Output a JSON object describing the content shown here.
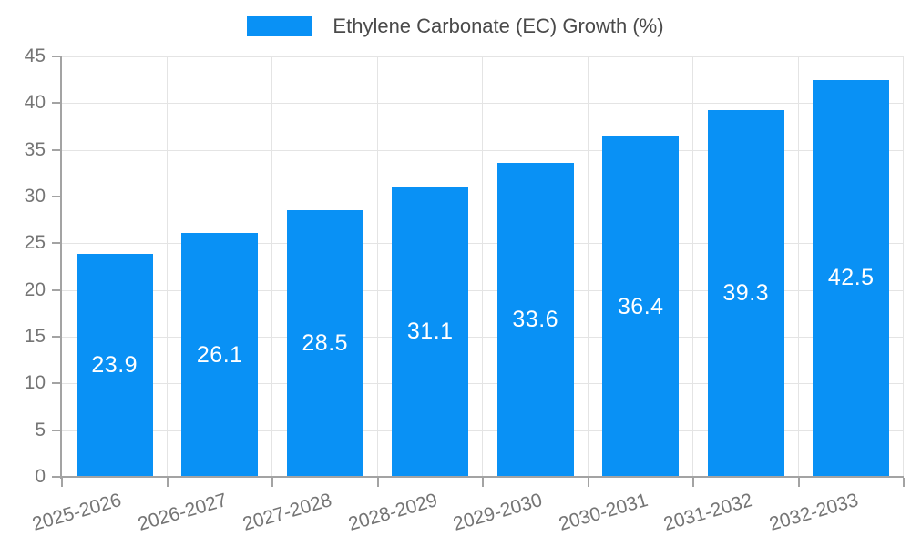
{
  "chart_data": {
    "type": "bar",
    "title": "Ethylene Carbonate (EC) Growth (%)",
    "legend": {
      "label": "Ethylene Carbonate (EC) Growth (%)",
      "position": "top-center"
    },
    "categories": [
      "2025-2026",
      "2026-2027",
      "2027-2028",
      "2028-2029",
      "2029-2030",
      "2030-2031",
      "2031-2032",
      "2032-2033"
    ],
    "series": [
      {
        "name": "Ethylene Carbonate (EC) Growth (%)",
        "values": [
          23.9,
          26.1,
          28.5,
          31.1,
          33.6,
          36.4,
          39.3,
          42.5
        ]
      }
    ],
    "value_labels": [
      "23.9",
      "26.1",
      "28.5",
      "31.1",
      "33.6",
      "36.4",
      "39.3",
      "42.5"
    ],
    "xlabel": "",
    "ylabel": "",
    "ylim": [
      0,
      45
    ],
    "ytick_interval": 5,
    "yticks": [
      0,
      5,
      10,
      15,
      20,
      25,
      30,
      35,
      40,
      45
    ],
    "grid": {
      "horizontal": true,
      "vertical": true
    },
    "x_label_rotation_deg": -16,
    "colors": {
      "bar": "#0991f5",
      "value_label": "#ffffff",
      "grid_line": "#e4e4e4",
      "axis_line": "#a3a3a3",
      "tick_mark": "#a3a3a3",
      "tick_label": "#757575",
      "legend_text": "#4a4a4a",
      "background": "#ffffff"
    }
  }
}
